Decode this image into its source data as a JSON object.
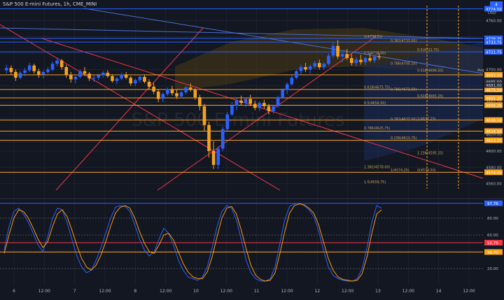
{
  "header": {
    "symbol_line": "S&P 500 E-mini Futures, 1h, CME_MINI"
  },
  "watermark": {
    "text": "S&P 500 E-mini Futures"
  },
  "toolbar": {
    "currency": "USD",
    "avg_label": "Avg",
    "info_badge": "4"
  },
  "colors": {
    "background": "#131722",
    "grid": "#1e2230",
    "candle_up": "#2962ff",
    "candle_down": "#f7a21b",
    "hline": "#f7a21b",
    "hline_blue": "#2962ff",
    "trend_red": "#f23645",
    "fib_blue": "#4a6fd1",
    "k_line": "#2962ff",
    "d_line": "#ff9800",
    "axis_text": "#b2b5be",
    "cloud": "#4a3a14"
  },
  "chart_data": [
    {
      "type": "candlestick",
      "ylim": [
        4552,
        4775
      ],
      "price_ticks": [
        4560,
        4580,
        4600,
        4620,
        4640,
        4660,
        4680,
        4700,
        4720,
        4740,
        4760
      ],
      "x_ticks": [
        "6",
        "12:00",
        "7",
        "12:00",
        "8",
        "12:00",
        "10",
        "12:00",
        "11",
        "12:00",
        "12",
        "12:00",
        "13",
        "12:00",
        "14",
        "12:00"
      ],
      "horizontal_levels": [
        {
          "value": 4774.5,
          "label": "4774.50",
          "color": "#2962ff"
        },
        {
          "value": 4738.25,
          "label": "4738.25",
          "color": "#2962ff"
        },
        {
          "value": 4733.75,
          "label": "4733.75",
          "color": "#2962ff"
        },
        {
          "value": 4721.75,
          "label": "4721.75",
          "color": "#2962ff"
        },
        {
          "value": 4693.5,
          "label": "4693.50",
          "color": "#f7a21b"
        },
        {
          "value": 4675.5,
          "label": "4675.50",
          "color": "#f7a21b"
        },
        {
          "value": 4665.25,
          "label": "4665.25",
          "color": "#f7a21b"
        },
        {
          "value": 4656.25,
          "label": "4656.25",
          "color": "#f7a21b"
        },
        {
          "value": 4638.0,
          "label": "4638.00",
          "color": "#f7a21b"
        },
        {
          "value": 4624.5,
          "label": "4624.50",
          "color": "#f7a21b"
        },
        {
          "value": 4613.25,
          "label": "4613.25",
          "color": "#f7a21b"
        },
        {
          "value": 4574.0,
          "label": "4574.00",
          "color": "#f7a21b"
        }
      ],
      "axis_badges": [
        {
          "value": 4685.5,
          "label": "4685.50"
        },
        {
          "value": 4681.0,
          "label": "4681.00"
        }
      ],
      "fib_labels": [
        {
          "text": "1(4738.25)",
          "price": 4738.25
        },
        {
          "text": "0.382(4733.00)",
          "price": 4733.0
        },
        {
          "text": "0.5(4721.75)",
          "price": 4721.75
        },
        {
          "text": "0.5(4718.00)",
          "price": 4718.0
        },
        {
          "text": "0.786(4705.25)",
          "price": 4705.25
        },
        {
          "text": "0.618(4696.50)",
          "price": 4696.5
        },
        {
          "text": "0.618(4675.75)",
          "price": 4675.75
        },
        {
          "text": "0.786(4673.50)",
          "price": 4673.5
        },
        {
          "text": "0.618(4665.25)",
          "price": 4665.25
        },
        {
          "text": "0.5(4656.50)",
          "price": 4656.5
        },
        {
          "text": "0.382(4637.00)",
          "price": 4637.0
        },
        {
          "text": "1(4637.25)",
          "price": 4637.25
        },
        {
          "text": "0.786(4625.75)",
          "price": 4625.75
        },
        {
          "text": "0.236(4613.75)",
          "price": 4613.75
        },
        {
          "text": "1.236(4595.25)",
          "price": 4595.25
        },
        {
          "text": "1.382(4578.00)",
          "price": 4578.0
        },
        {
          "text": "1(4574.25)",
          "price": 4574.25
        },
        {
          "text": "0(4574.50)",
          "price": 4574.5
        },
        {
          "text": "1.5(4559.75)",
          "price": 4559.75
        }
      ],
      "candles": [
        [
          4699,
          4706,
          4695,
          4702
        ],
        [
          4702,
          4705,
          4694,
          4697
        ],
        [
          4697,
          4700,
          4686,
          4690
        ],
        [
          4690,
          4698,
          4688,
          4696
        ],
        [
          4696,
          4702,
          4692,
          4699
        ],
        [
          4699,
          4708,
          4697,
          4705
        ],
        [
          4705,
          4707,
          4695,
          4698
        ],
        [
          4698,
          4701,
          4690,
          4694
        ],
        [
          4694,
          4699,
          4689,
          4697
        ],
        [
          4697,
          4703,
          4695,
          4700
        ],
        [
          4700,
          4710,
          4698,
          4707
        ],
        [
          4707,
          4715,
          4704,
          4711
        ],
        [
          4711,
          4713,
          4700,
          4703
        ],
        [
          4703,
          4706,
          4690,
          4693
        ],
        [
          4693,
          4697,
          4684,
          4688
        ],
        [
          4688,
          4694,
          4683,
          4691
        ],
        [
          4691,
          4700,
          4689,
          4698
        ],
        [
          4698,
          4703,
          4692,
          4695
        ],
        [
          4695,
          4697,
          4686,
          4689
        ],
        [
          4689,
          4693,
          4685,
          4690
        ],
        [
          4690,
          4695,
          4687,
          4693
        ],
        [
          4693,
          4698,
          4690,
          4696
        ],
        [
          4696,
          4699,
          4690,
          4692
        ],
        [
          4692,
          4694,
          4684,
          4686
        ],
        [
          4686,
          4691,
          4682,
          4689
        ],
        [
          4689,
          4696,
          4687,
          4694
        ],
        [
          4694,
          4697,
          4688,
          4690
        ],
        [
          4690,
          4692,
          4680,
          4683
        ],
        [
          4683,
          4689,
          4680,
          4687
        ],
        [
          4687,
          4694,
          4684,
          4691
        ],
        [
          4691,
          4693,
          4683,
          4685
        ],
        [
          4685,
          4688,
          4676,
          4679
        ],
        [
          4679,
          4684,
          4670,
          4673
        ],
        [
          4673,
          4676,
          4660,
          4664
        ],
        [
          4664,
          4672,
          4660,
          4670
        ],
        [
          4670,
          4678,
          4668,
          4676
        ],
        [
          4676,
          4680,
          4668,
          4671
        ],
        [
          4671,
          4675,
          4664,
          4667
        ],
        [
          4667,
          4674,
          4665,
          4672
        ],
        [
          4672,
          4680,
          4670,
          4678
        ],
        [
          4678,
          4683,
          4673,
          4675
        ],
        [
          4675,
          4677,
          4663,
          4666
        ],
        [
          4666,
          4669,
          4650,
          4655
        ],
        [
          4655,
          4658,
          4625,
          4632
        ],
        [
          4632,
          4636,
          4592,
          4600
        ],
        [
          4600,
          4612,
          4578,
          4583
        ],
        [
          4583,
          4606,
          4578,
          4603
        ],
        [
          4603,
          4630,
          4600,
          4627
        ],
        [
          4627,
          4648,
          4625,
          4645
        ],
        [
          4645,
          4660,
          4643,
          4656
        ],
        [
          4656,
          4665,
          4650,
          4662
        ],
        [
          4662,
          4668,
          4656,
          4659
        ],
        [
          4659,
          4666,
          4654,
          4664
        ],
        [
          4664,
          4669,
          4655,
          4658
        ],
        [
          4658,
          4662,
          4650,
          4653
        ],
        [
          4653,
          4661,
          4649,
          4659
        ],
        [
          4659,
          4663,
          4652,
          4655
        ],
        [
          4655,
          4658,
          4645,
          4649
        ],
        [
          4649,
          4657,
          4646,
          4655
        ],
        [
          4655,
          4668,
          4653,
          4666
        ],
        [
          4666,
          4677,
          4664,
          4675
        ],
        [
          4675,
          4684,
          4670,
          4682
        ],
        [
          4682,
          4693,
          4680,
          4690
        ],
        [
          4690,
          4700,
          4688,
          4698
        ],
        [
          4698,
          4706,
          4694,
          4703
        ],
        [
          4703,
          4708,
          4697,
          4700
        ],
        [
          4700,
          4706,
          4695,
          4704
        ],
        [
          4704,
          4711,
          4701,
          4708
        ],
        [
          4708,
          4712,
          4700,
          4703
        ],
        [
          4703,
          4709,
          4700,
          4707
        ],
        [
          4707,
          4720,
          4705,
          4717
        ],
        [
          4717,
          4733,
          4714,
          4729
        ],
        [
          4729,
          4736,
          4713,
          4716
        ],
        [
          4716,
          4722,
          4709,
          4719
        ],
        [
          4719,
          4725,
          4712,
          4714
        ],
        [
          4714,
          4719,
          4705,
          4708
        ],
        [
          4708,
          4715,
          4704,
          4712
        ],
        [
          4712,
          4718,
          4706,
          4709
        ],
        [
          4709,
          4716,
          4705,
          4714
        ],
        [
          4714,
          4720,
          4709,
          4711
        ],
        [
          4711,
          4718,
          4708,
          4716
        ],
        [
          4716,
          4720,
          4712,
          4715
        ]
      ]
    },
    {
      "type": "line",
      "ylim": [
        0,
        100
      ],
      "y_ticks": [
        20,
        40,
        60,
        80
      ],
      "levels": [
        {
          "value": 97.76,
          "label": "97.76",
          "color": "#2962ff"
        },
        {
          "value": 50.79,
          "label": "50.79",
          "color": "#f23645"
        },
        {
          "value": 39.7,
          "label": "39.70",
          "color": "#f7a21b"
        }
      ],
      "series": [
        {
          "values": [
            42,
            70,
            88,
            92,
            85,
            75,
            62,
            48,
            40,
            58,
            80,
            92,
            90,
            75,
            55,
            35,
            22,
            15,
            18,
            30,
            45,
            62,
            80,
            93,
            95,
            94,
            88,
            72,
            55,
            42,
            35,
            40,
            55,
            68,
            62,
            48,
            30,
            18,
            10,
            8,
            6,
            10,
            22,
            45,
            70,
            88,
            95,
            92,
            78,
            55,
            30,
            15,
            8,
            5,
            5,
            8,
            22,
            50,
            78,
            94,
            97,
            98,
            95,
            90,
            82,
            65,
            42,
            22,
            12,
            8,
            6,
            5,
            5,
            8,
            20,
            45,
            75,
            95,
            92
          ]
        },
        {
          "values": [
            38,
            60,
            80,
            90,
            88,
            80,
            68,
            55,
            45,
            52,
            70,
            85,
            90,
            82,
            66,
            48,
            32,
            22,
            18,
            24,
            36,
            52,
            70,
            86,
            93,
            95,
            92,
            80,
            64,
            50,
            40,
            38,
            48,
            60,
            62,
            54,
            40,
            26,
            16,
            10,
            8,
            8,
            16,
            34,
            58,
            80,
            92,
            94,
            85,
            66,
            44,
            24,
            12,
            7,
            5,
            6,
            15,
            38,
            64,
            86,
            95,
            97,
            96,
            92,
            86,
            72,
            52,
            32,
            18,
            10,
            7,
            6,
            5,
            6,
            14,
            34,
            62,
            85,
            90
          ]
        }
      ]
    }
  ]
}
